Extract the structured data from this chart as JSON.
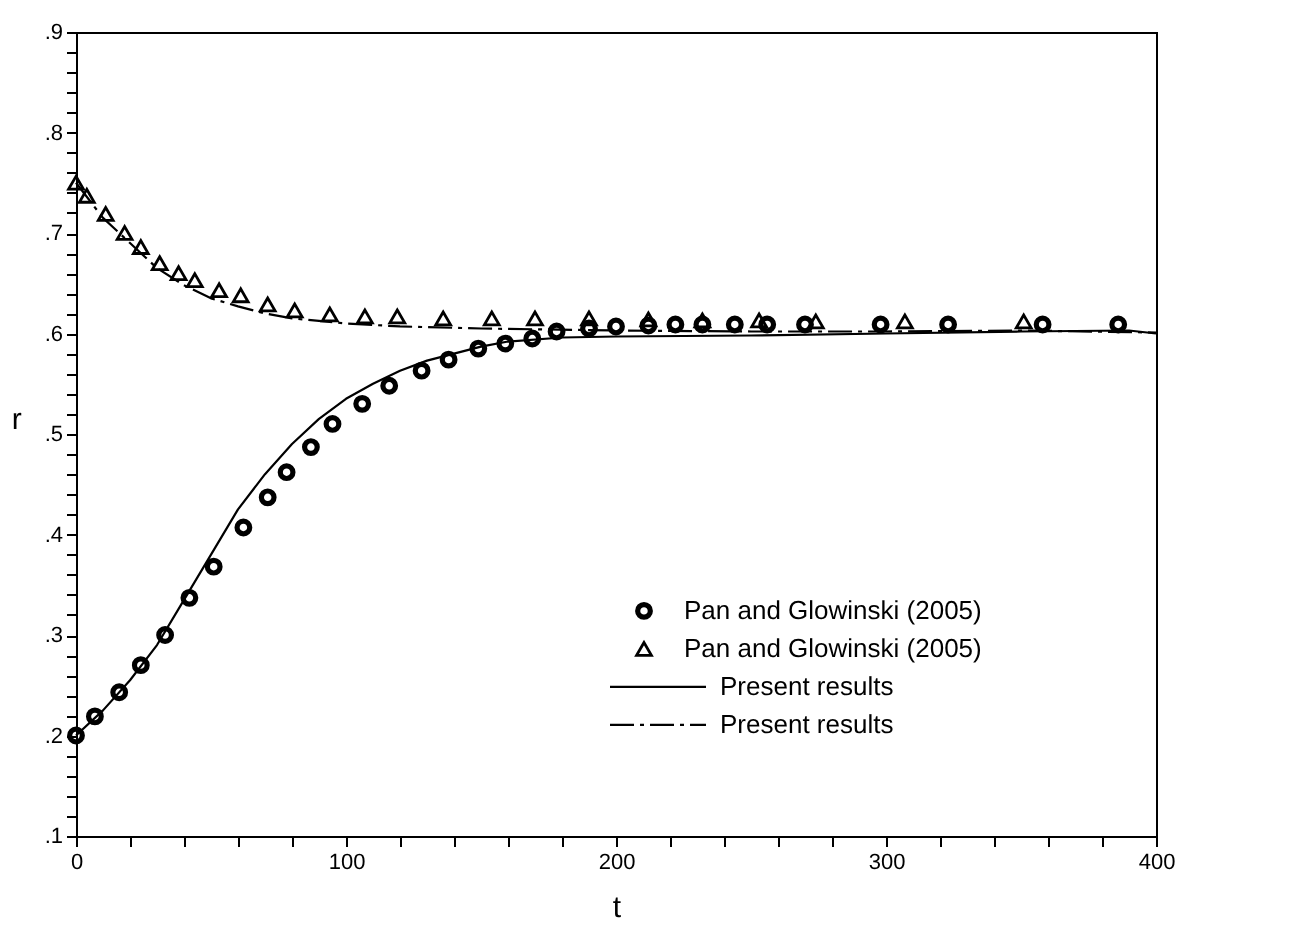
{
  "chart_data": {
    "type": "scatter",
    "xlabel": "t",
    "ylabel": "r",
    "xlim": [
      0,
      400
    ],
    "ylim": [
      0.1,
      0.9
    ],
    "xticks": [
      0,
      {
        "value": 20,
        "label": null
      },
      {
        "value": 40,
        "label": null
      },
      {
        "value": 60,
        "label": null
      },
      {
        "value": 80,
        "label": null
      },
      100,
      {
        "value": 120,
        "label": null
      },
      {
        "value": 140,
        "label": null
      },
      {
        "value": 160,
        "label": null
      },
      {
        "value": 180,
        "label": null
      },
      200,
      {
        "value": 220,
        "label": null
      },
      {
        "value": 240,
        "label": null
      },
      {
        "value": 260,
        "label": null
      },
      {
        "value": 280,
        "label": null
      },
      300,
      {
        "value": 320,
        "label": null
      },
      {
        "value": 340,
        "label": null
      },
      {
        "value": 360,
        "label": null
      },
      {
        "value": 380,
        "label": null
      },
      400
    ],
    "yticks": [
      {
        "value": 0.1,
        "label": ".1"
      },
      {
        "value": 0.12,
        "label": null
      },
      {
        "value": 0.14,
        "label": null
      },
      {
        "value": 0.16,
        "label": null
      },
      {
        "value": 0.18,
        "label": null
      },
      {
        "value": 0.2,
        "label": ".2"
      },
      {
        "value": 0.22,
        "label": null
      },
      {
        "value": 0.24,
        "label": null
      },
      {
        "value": 0.26,
        "label": null
      },
      {
        "value": 0.28,
        "label": null
      },
      {
        "value": 0.3,
        "label": ".3"
      },
      {
        "value": 0.32,
        "label": null
      },
      {
        "value": 0.34,
        "label": null
      },
      {
        "value": 0.36,
        "label": null
      },
      {
        "value": 0.38,
        "label": null
      },
      {
        "value": 0.4,
        "label": ".4"
      },
      {
        "value": 0.42,
        "label": null
      },
      {
        "value": 0.44,
        "label": null
      },
      {
        "value": 0.46,
        "label": null
      },
      {
        "value": 0.48,
        "label": null
      },
      {
        "value": 0.5,
        "label": ".5"
      },
      {
        "value": 0.52,
        "label": null
      },
      {
        "value": 0.54,
        "label": null
      },
      {
        "value": 0.56,
        "label": null
      },
      {
        "value": 0.58,
        "label": null
      },
      {
        "value": 0.6,
        "label": ".6"
      },
      {
        "value": 0.62,
        "label": null
      },
      {
        "value": 0.64,
        "label": null
      },
      {
        "value": 0.66,
        "label": null
      },
      {
        "value": 0.68,
        "label": null
      },
      {
        "value": 0.7,
        "label": ".7"
      },
      {
        "value": 0.72,
        "label": null
      },
      {
        "value": 0.74,
        "label": null
      },
      {
        "value": 0.76,
        "label": null
      },
      {
        "value": 0.78,
        "label": null
      },
      {
        "value": 0.8,
        "label": ".8"
      },
      {
        "value": 0.82,
        "label": null
      },
      {
        "value": 0.84,
        "label": null
      },
      {
        "value": 0.86,
        "label": null
      },
      {
        "value": 0.88,
        "label": null
      },
      {
        "value": 0.9,
        "label": ".9"
      }
    ],
    "grid": false,
    "legend": "bottom right",
    "series": [
      {
        "name": "Pan and Glowinski (2005)",
        "marker": "circle",
        "color": "#000000",
        "x": [
          0,
          7,
          16,
          24,
          33,
          42,
          51,
          62,
          71,
          78,
          87,
          95,
          106,
          116,
          128,
          138,
          149,
          159,
          169,
          178,
          190,
          200,
          212,
          222,
          232,
          244,
          256,
          270,
          298,
          323,
          358,
          386
        ],
        "values": [
          0.2,
          0.219,
          0.243,
          0.27,
          0.3,
          0.337,
          0.368,
          0.407,
          0.437,
          0.462,
          0.487,
          0.51,
          0.53,
          0.548,
          0.563,
          0.574,
          0.585,
          0.59,
          0.595,
          0.602,
          0.605,
          0.607,
          0.608,
          0.609,
          0.609,
          0.609,
          0.609,
          0.609,
          0.609,
          0.609,
          0.609,
          0.609
        ]
      },
      {
        "name": "Pan and Glowinski (2005)",
        "marker": "triangle",
        "color": "#000000",
        "x": [
          0,
          4,
          11,
          18,
          24,
          31,
          38,
          44,
          53,
          61,
          71,
          81,
          94,
          107,
          119,
          136,
          154,
          170,
          190,
          212,
          232,
          253,
          274,
          307,
          351
        ],
        "values": [
          0.75,
          0.737,
          0.719,
          0.7,
          0.686,
          0.67,
          0.66,
          0.653,
          0.643,
          0.638,
          0.629,
          0.623,
          0.619,
          0.617,
          0.617,
          0.615,
          0.615,
          0.615,
          0.615,
          0.614,
          0.613,
          0.613,
          0.612,
          0.612,
          0.612
        ]
      },
      {
        "name": "Present results",
        "type": "line",
        "marker": "none",
        "line_style": "solid",
        "color": "#000000",
        "x": [
          0,
          10,
          20,
          30,
          40,
          50,
          60,
          70,
          80,
          90,
          100,
          110,
          120,
          130,
          140,
          150,
          160,
          180,
          200,
          250,
          300,
          350,
          390,
          400
        ],
        "values": [
          0.2,
          0.225,
          0.255,
          0.29,
          0.335,
          0.38,
          0.425,
          0.46,
          0.49,
          0.515,
          0.535,
          0.55,
          0.563,
          0.573,
          0.58,
          0.587,
          0.592,
          0.596,
          0.597,
          0.598,
          0.6,
          0.602,
          0.603,
          0.6
        ]
      },
      {
        "name": "Present results",
        "type": "line",
        "marker": "none",
        "line_style": "dashdot",
        "color": "#000000",
        "x": [
          0,
          10,
          20,
          30,
          40,
          50,
          60,
          70,
          80,
          100,
          120,
          150,
          200,
          250,
          300,
          350,
          400
        ],
        "values": [
          0.75,
          0.715,
          0.69,
          0.665,
          0.648,
          0.635,
          0.627,
          0.62,
          0.615,
          0.61,
          0.607,
          0.605,
          0.603,
          0.602,
          0.602,
          0.603,
          0.601
        ]
      }
    ]
  }
}
